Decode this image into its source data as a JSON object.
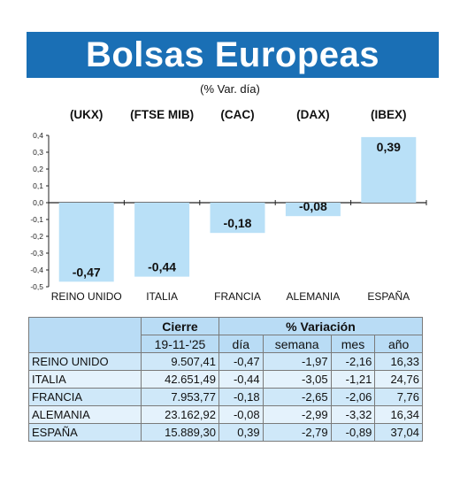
{
  "header": {
    "title": "Bolsas Europeas",
    "subtitle": "(% Var. día)"
  },
  "colors": {
    "title_bg": "#1a6fb5",
    "bar_fill": "#b9e0f7",
    "table_header": "#b9dcf5",
    "table_row": "#cfe8f9"
  },
  "chart_data": {
    "type": "bar",
    "categories": [
      "REINO UNIDO",
      "ITALIA",
      "FRANCIA",
      "ALEMANIA",
      "ESPAÑA"
    ],
    "index_labels": [
      "(UKX)",
      "(FTSE MIB)",
      "(CAC)",
      "(DAX)",
      "(IBEX)"
    ],
    "values": [
      -0.47,
      -0.44,
      -0.18,
      -0.08,
      0.39
    ],
    "value_labels": [
      "-0,47",
      "-0,44",
      "-0,18",
      "-0,08",
      "0,39"
    ],
    "ylim": [
      -0.5,
      0.4
    ],
    "yticks": [
      0.4,
      0.3,
      0.2,
      0.1,
      0.0,
      -0.1,
      -0.2,
      -0.3,
      -0.4,
      -0.5
    ],
    "ytick_labels": [
      "0,4",
      "0,3",
      "0,2",
      "0,1",
      "0,0",
      "-0,1",
      "-0,2",
      "-0,3",
      "-0,4",
      "-0,5"
    ],
    "grid": false,
    "legend": "none"
  },
  "table": {
    "group_headers": {
      "cierre": "Cierre",
      "variacion": "% Variación"
    },
    "date": "19-11-'25",
    "columns": [
      "día",
      "semana",
      "mes",
      "año"
    ],
    "rows": [
      {
        "name": "REINO UNIDO",
        "cierre": "9.507,41",
        "dia": "-0,47",
        "semana": "-1,97",
        "mes": "-2,16",
        "anio": "16,33"
      },
      {
        "name": "ITALIA",
        "cierre": "42.651,49",
        "dia": "-0,44",
        "semana": "-3,05",
        "mes": "-1,21",
        "anio": "24,76"
      },
      {
        "name": "FRANCIA",
        "cierre": "7.953,77",
        "dia": "-0,18",
        "semana": "-2,65",
        "mes": "-2,06",
        "anio": "7,76"
      },
      {
        "name": "ALEMANIA",
        "cierre": "23.162,92",
        "dia": "-0,08",
        "semana": "-2,99",
        "mes": "-3,32",
        "anio": "16,34"
      },
      {
        "name": "ESPAÑA",
        "cierre": "15.889,30",
        "dia": "0,39",
        "semana": "-2,79",
        "mes": "-0,89",
        "anio": "37,04"
      }
    ]
  }
}
